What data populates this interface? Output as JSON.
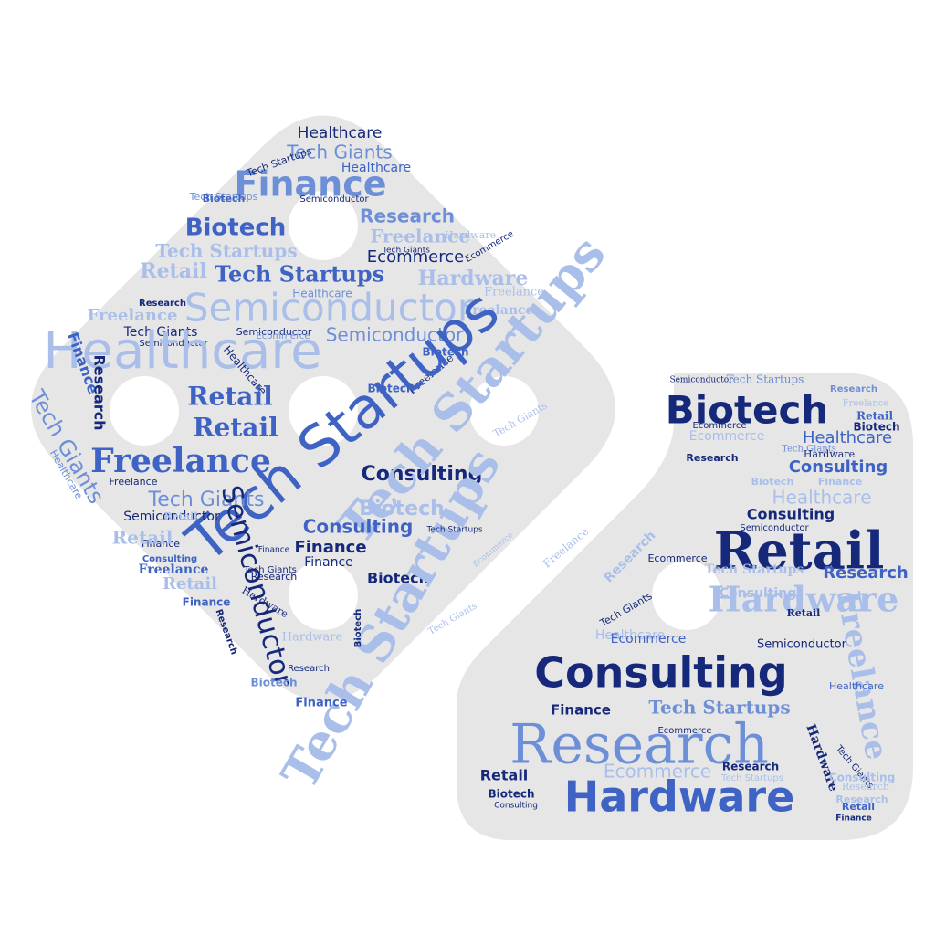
{
  "palette": {
    "background": "#ffffff",
    "shape_fill": "#e6e6e6",
    "navy": "#16287a",
    "blue": "#3f63c4",
    "mid": "#6d8fd8",
    "light": "#a9bfe9"
  },
  "left_cloud": {
    "words": [
      "Healthcare",
      "Tech Giants",
      "Healthcare",
      "Finance",
      "Biotech",
      "Semiconductor",
      "Tech Startups",
      "Research",
      "Tech Startups",
      "Biotech",
      "Freelance",
      "Tech Startups",
      "Ecommerce",
      "Tech Giants",
      "Ecommerce",
      "Freelance",
      "Hardware",
      "Retail",
      "Tech Startups",
      "Hardware",
      "Semiconductor",
      "Healthcare",
      "Research",
      "Freelance",
      "Semiconductor",
      "Freelance",
      "Tech Giants",
      "Semiconductor",
      "Ecommerce",
      "Semiconductor",
      "Healthcare",
      "Biotech",
      "Finance",
      "Research",
      "Tech Giants",
      "Healthcare",
      "Retail",
      "Biotech",
      "Retail",
      "Freelance",
      "Freelance",
      "Tech Giants",
      "Tech Startups",
      "Consulting",
      "Tech Startups",
      "Freelance",
      "Healthcare",
      "Tech Giants",
      "Semiconductor",
      "Finance",
      "Biotech",
      "Consulting",
      "Finance",
      "Finance",
      "Finance",
      "Retail",
      "Consulting",
      "Biotech",
      "Freelance",
      "Semiconductor",
      "Research",
      "Retail",
      "Tech Giants",
      "Hardware",
      "Finance",
      "Tech Startups",
      "Biotech",
      "Research",
      "Hardware",
      "Biotech",
      "Finance",
      "Research",
      "Tech Giants",
      "Ecommerce",
      "Tech Startups",
      "Retail"
    ]
  },
  "right_cloud": {
    "words": [
      "Semiconductor",
      "Tech Startups",
      "Research",
      "Biotech",
      "Freelance",
      "Retail",
      "Biotech",
      "Ecommerce",
      "Healthcare",
      "Ecommerce",
      "Tech Giants",
      "Research",
      "Hardware",
      "Consulting",
      "Biotech",
      "Finance",
      "Healthcare",
      "Consulting",
      "Semiconductor",
      "Retail",
      "Ecommerce",
      "Research",
      "Tech Startups",
      "Hardware",
      "Freelance",
      "Consulting",
      "Research",
      "Retail",
      "Tech Giants",
      "Healthcare",
      "Semiconductor",
      "Ecommerce",
      "Freelance",
      "Consulting",
      "Finance",
      "Tech Startups",
      "Research",
      "Hardware",
      "Tech Giants",
      "Healthcare",
      "Ecommerce",
      "Research",
      "Retail",
      "Tech Startups",
      "Consulting",
      "Biotech",
      "Research",
      "Hardware",
      "Research",
      "Consulting",
      "Retail",
      "Ecommerce",
      "Finance"
    ]
  }
}
